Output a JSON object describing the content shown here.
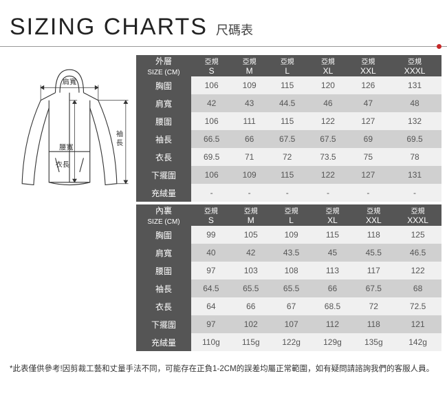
{
  "title_en": "SIZING CHARTS",
  "title_zh": "尺碼表",
  "diagram_labels": {
    "shoulder": "肩寬",
    "waist": "腰寬",
    "body_len": "衣長",
    "sleeve_len": "袖長"
  },
  "colors": {
    "header_bg": "#555555",
    "header_fg": "#ffffff",
    "cell_alt_bg": "#d0d0d0",
    "cell_reg_bg": "#f0f0f0",
    "cell_fg": "#555555",
    "accent": "#c62828"
  },
  "tables": [
    {
      "header_label": "外層\nSIZE (CM)",
      "size_top": "亞規",
      "sizes": [
        "S",
        "M",
        "L",
        "XL",
        "XXL",
        "XXXL"
      ],
      "rows": [
        {
          "label": "胸圍",
          "v": [
            "106",
            "109",
            "115",
            "120",
            "126",
            "131"
          ]
        },
        {
          "label": "肩寬",
          "v": [
            "42",
            "43",
            "44.5",
            "46",
            "47",
            "48"
          ]
        },
        {
          "label": "腰圍",
          "v": [
            "106",
            "111",
            "115",
            "122",
            "127",
            "132"
          ]
        },
        {
          "label": "袖長",
          "v": [
            "66.5",
            "66",
            "67.5",
            "67.5",
            "69",
            "69.5"
          ]
        },
        {
          "label": "衣長",
          "v": [
            "69.5",
            "71",
            "72",
            "73.5",
            "75",
            "78"
          ]
        },
        {
          "label": "下擺圍",
          "v": [
            "106",
            "109",
            "115",
            "122",
            "127",
            "131"
          ]
        },
        {
          "label": "充絨量",
          "v": [
            "-",
            "-",
            "-",
            "-",
            "-",
            "-"
          ]
        }
      ]
    },
    {
      "header_label": "內裏\nSIZE (CM)",
      "size_top": "亞規",
      "sizes": [
        "S",
        "M",
        "L",
        "XL",
        "XXL",
        "XXXL"
      ],
      "rows": [
        {
          "label": "胸圍",
          "v": [
            "99",
            "105",
            "109",
            "115",
            "118",
            "125"
          ]
        },
        {
          "label": "肩寬",
          "v": [
            "40",
            "42",
            "43.5",
            "45",
            "45.5",
            "46.5"
          ]
        },
        {
          "label": "腰圍",
          "v": [
            "97",
            "103",
            "108",
            "113",
            "117",
            "122"
          ]
        },
        {
          "label": "袖長",
          "v": [
            "64.5",
            "65.5",
            "65.5",
            "66",
            "67.5",
            "68"
          ]
        },
        {
          "label": "衣長",
          "v": [
            "64",
            "66",
            "67",
            "68.5",
            "72",
            "72.5"
          ]
        },
        {
          "label": "下擺圍",
          "v": [
            "97",
            "102",
            "107",
            "112",
            "118",
            "121"
          ]
        },
        {
          "label": "充絨量",
          "v": [
            "110g",
            "115g",
            "122g",
            "129g",
            "135g",
            "142g"
          ]
        }
      ]
    }
  ],
  "footnote": "*此表僅供參考!因剪裁工藝和丈量手法不同，可能存在正負1-2CM的誤差均屬正常範圍，如有疑問請諮詢我們的客服人員。"
}
